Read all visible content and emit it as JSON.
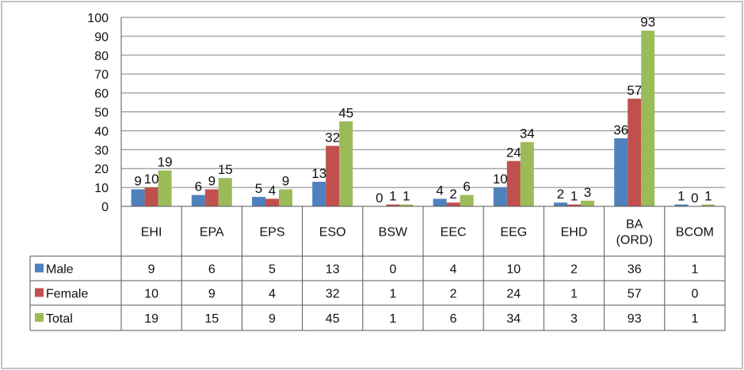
{
  "chart_data": {
    "type": "bar",
    "title": "",
    "xlabel": "",
    "ylabel": "",
    "ylim": [
      0,
      100
    ],
    "yticks": [
      0,
      10,
      20,
      30,
      40,
      50,
      60,
      70,
      80,
      90,
      100
    ],
    "grid": true,
    "legend": "data-table-left",
    "categories": [
      [
        "EHI"
      ],
      [
        "EPA"
      ],
      [
        "EPS"
      ],
      [
        "ESO"
      ],
      [
        "BSW"
      ],
      [
        "EEC"
      ],
      [
        "EEG"
      ],
      [
        "EHD"
      ],
      [
        "BA",
        "(ORD)"
      ],
      [
        "BCOM"
      ]
    ],
    "series": [
      {
        "name": "Male",
        "color": "#4f81bd",
        "values": [
          9,
          6,
          5,
          13,
          0,
          4,
          10,
          2,
          36,
          1
        ]
      },
      {
        "name": "Female",
        "color": "#c0504d",
        "values": [
          10,
          9,
          4,
          32,
          1,
          2,
          24,
          1,
          57,
          0
        ]
      },
      {
        "name": "Total",
        "color": "#9bbb59",
        "values": [
          19,
          15,
          9,
          45,
          1,
          6,
          34,
          3,
          93,
          1
        ]
      }
    ]
  }
}
